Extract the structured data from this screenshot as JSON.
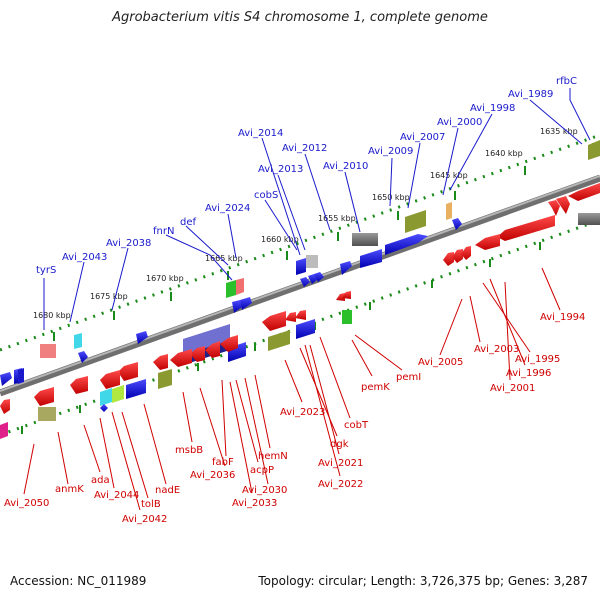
{
  "title": "Agrobacterium vitis S4 chromosome 1, complete genome",
  "footer": {
    "accession": "Accession: NC_011989",
    "topology": "Topology: circular; Length: 3,726,375 bp; Genes: 3,287"
  },
  "kbp_labels": [
    "1635 kbp",
    "1640 kbp",
    "1645 kbp",
    "1650 kbp",
    "1655 kbp",
    "1660 kbp",
    "1665 kbp",
    "1670 kbp",
    "1675 kbp",
    "1680 kbp"
  ],
  "top_genes": [
    "rfbC",
    "Avi_1989",
    "Avi_1998",
    "Avi_2000",
    "Avi_2007",
    "Avi_2009",
    "Avi_2010",
    "Avi_2012",
    "Avi_2014",
    "Avi_2013",
    "cobS",
    "Avi_2024",
    "def",
    "fnrN",
    "Avi_2038",
    "Avi_2043",
    "tyrS"
  ],
  "bottom_genes": [
    "Avi_1994",
    "Avi_2003",
    "Avi_1995",
    "Avi_1996",
    "Avi_2001",
    "Avi_2005",
    "pemI",
    "pemK",
    "cobT",
    "Avi_2023",
    "dgk",
    "Avi_2021",
    "Avi_2022",
    "hemN",
    "acpP",
    "Avi_2030",
    "fabF",
    "Avi_2033",
    "Avi_2036",
    "msbB",
    "nadE",
    "Avi_2042",
    "tolB",
    "Avi_2044",
    "ada",
    "anmK",
    "Avi_2050"
  ],
  "colors": {
    "forward": "#1f1fe0",
    "reverse": "#e01010",
    "backbone": "#808080",
    "ticks": "#1a8a1a"
  }
}
